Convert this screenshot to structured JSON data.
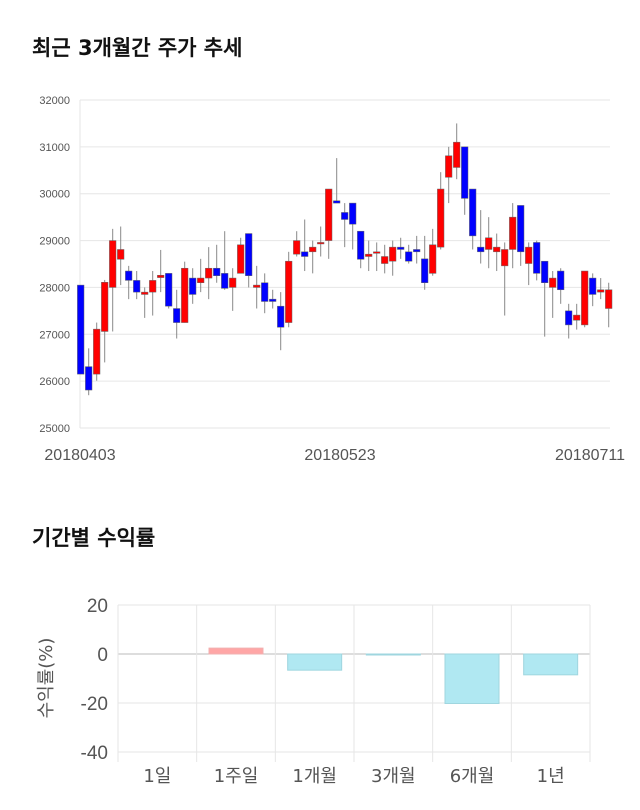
{
  "titles": {
    "price": "최근 3개월간 주가 추세",
    "returns": "기간별 수익률"
  },
  "chart_data": [
    {
      "type": "candlestick",
      "title": "최근 3개월간 주가 추세",
      "ylim": [
        25000,
        32000
      ],
      "yticks": [
        25000,
        26000,
        27000,
        28000,
        29000,
        30000,
        31000,
        32000
      ],
      "xtick_labels": [
        "20180403",
        "20180523",
        "20180711"
      ],
      "grid": true,
      "colors": {
        "up": "#ff0000",
        "down": "#0000ff"
      },
      "ohlc": [
        [
          28050,
          28050,
          26150,
          26150
        ],
        [
          26310,
          26700,
          25700,
          25810
        ],
        [
          26150,
          27250,
          26010,
          27110
        ],
        [
          27060,
          28160,
          26400,
          28110
        ],
        [
          28000,
          29250,
          27060,
          29000
        ],
        [
          28600,
          29300,
          28050,
          28810
        ],
        [
          28350,
          28460,
          27750,
          28150
        ],
        [
          28150,
          28350,
          27750,
          27900
        ],
        [
          27850,
          28000,
          27350,
          27900
        ],
        [
          27900,
          28350,
          27400,
          28150
        ],
        [
          28210,
          28800,
          27900,
          28260
        ],
        [
          28300,
          28300,
          27550,
          27600
        ],
        [
          27550,
          27950,
          26910,
          27250
        ],
        [
          27250,
          28550,
          27250,
          28410
        ],
        [
          28200,
          28410,
          27650,
          27850
        ],
        [
          28100,
          28610,
          27900,
          28200
        ],
        [
          28200,
          28860,
          27750,
          28410
        ],
        [
          28410,
          28910,
          28100,
          28250
        ],
        [
          28300,
          29200,
          27950,
          27980
        ],
        [
          28000,
          28410,
          27500,
          28200
        ],
        [
          28300,
          29060,
          28300,
          28910
        ],
        [
          29150,
          29150,
          28000,
          28250
        ],
        [
          28000,
          28460,
          27550,
          28050
        ],
        [
          28100,
          28300,
          27450,
          27700
        ],
        [
          27750,
          27950,
          27550,
          27700
        ],
        [
          27600,
          27900,
          26660,
          27150
        ],
        [
          27250,
          28760,
          27150,
          28560
        ],
        [
          28710,
          29200,
          28660,
          29000
        ],
        [
          28760,
          29450,
          28350,
          28660
        ],
        [
          28760,
          29000,
          28300,
          28860
        ],
        [
          28930,
          29300,
          28660,
          28960
        ],
        [
          29000,
          30100,
          28610,
          30100
        ],
        [
          29850,
          30760,
          29800,
          29800
        ],
        [
          29600,
          29800,
          28860,
          29450
        ],
        [
          29800,
          29800,
          28810,
          29350
        ],
        [
          29200,
          29200,
          28410,
          28600
        ],
        [
          28660,
          29000,
          28350,
          28710
        ],
        [
          28730,
          28960,
          28350,
          28760
        ],
        [
          28510,
          28910,
          28300,
          28660
        ],
        [
          28560,
          29000,
          28250,
          28860
        ],
        [
          28860,
          29060,
          28610,
          28810
        ],
        [
          28760,
          28910,
          28510,
          28560
        ],
        [
          28810,
          29100,
          28510,
          28760
        ],
        [
          28610,
          29100,
          27950,
          28100
        ],
        [
          28300,
          29250,
          28250,
          28910
        ],
        [
          28860,
          30460,
          28810,
          30100
        ],
        [
          30350,
          31000,
          29800,
          30810
        ],
        [
          30560,
          31500,
          30310,
          31100
        ],
        [
          31000,
          31000,
          29550,
          29900
        ],
        [
          30100,
          30100,
          28810,
          29100
        ],
        [
          28860,
          29650,
          28510,
          28760
        ],
        [
          28810,
          29500,
          28410,
          29060
        ],
        [
          28760,
          29150,
          28350,
          28860
        ],
        [
          28460,
          28960,
          27400,
          28810
        ],
        [
          28810,
          29800,
          28410,
          29500
        ],
        [
          29750,
          29750,
          28460,
          28760
        ],
        [
          28510,
          28960,
          28050,
          28860
        ],
        [
          28960,
          29000,
          28150,
          28300
        ],
        [
          28560,
          28560,
          26950,
          28100
        ],
        [
          28000,
          28350,
          27350,
          28200
        ],
        [
          28350,
          28410,
          27650,
          27950
        ],
        [
          27500,
          27650,
          26910,
          27200
        ],
        [
          27300,
          27650,
          27100,
          27410
        ],
        [
          27200,
          28350,
          27150,
          28350
        ],
        [
          28200,
          28300,
          27600,
          27850
        ],
        [
          27900,
          28200,
          27750,
          27950
        ],
        [
          27550,
          28100,
          27150,
          27950
        ]
      ]
    },
    {
      "type": "bar",
      "title": "기간별 수익률",
      "ylabel": "수익률(%)",
      "ylim": [
        -40,
        20
      ],
      "yticks": [
        -40,
        -20,
        0,
        20
      ],
      "categories": [
        "1일",
        "1주일",
        "1개월",
        "3개월",
        "6개월",
        "1년"
      ],
      "values": [
        0,
        2.4,
        -6.6,
        -0.3,
        -20.2,
        -8.5
      ],
      "colors": {
        "positive": "#ffa6a6",
        "negative": "#b0e8f2"
      },
      "grid": true
    }
  ]
}
